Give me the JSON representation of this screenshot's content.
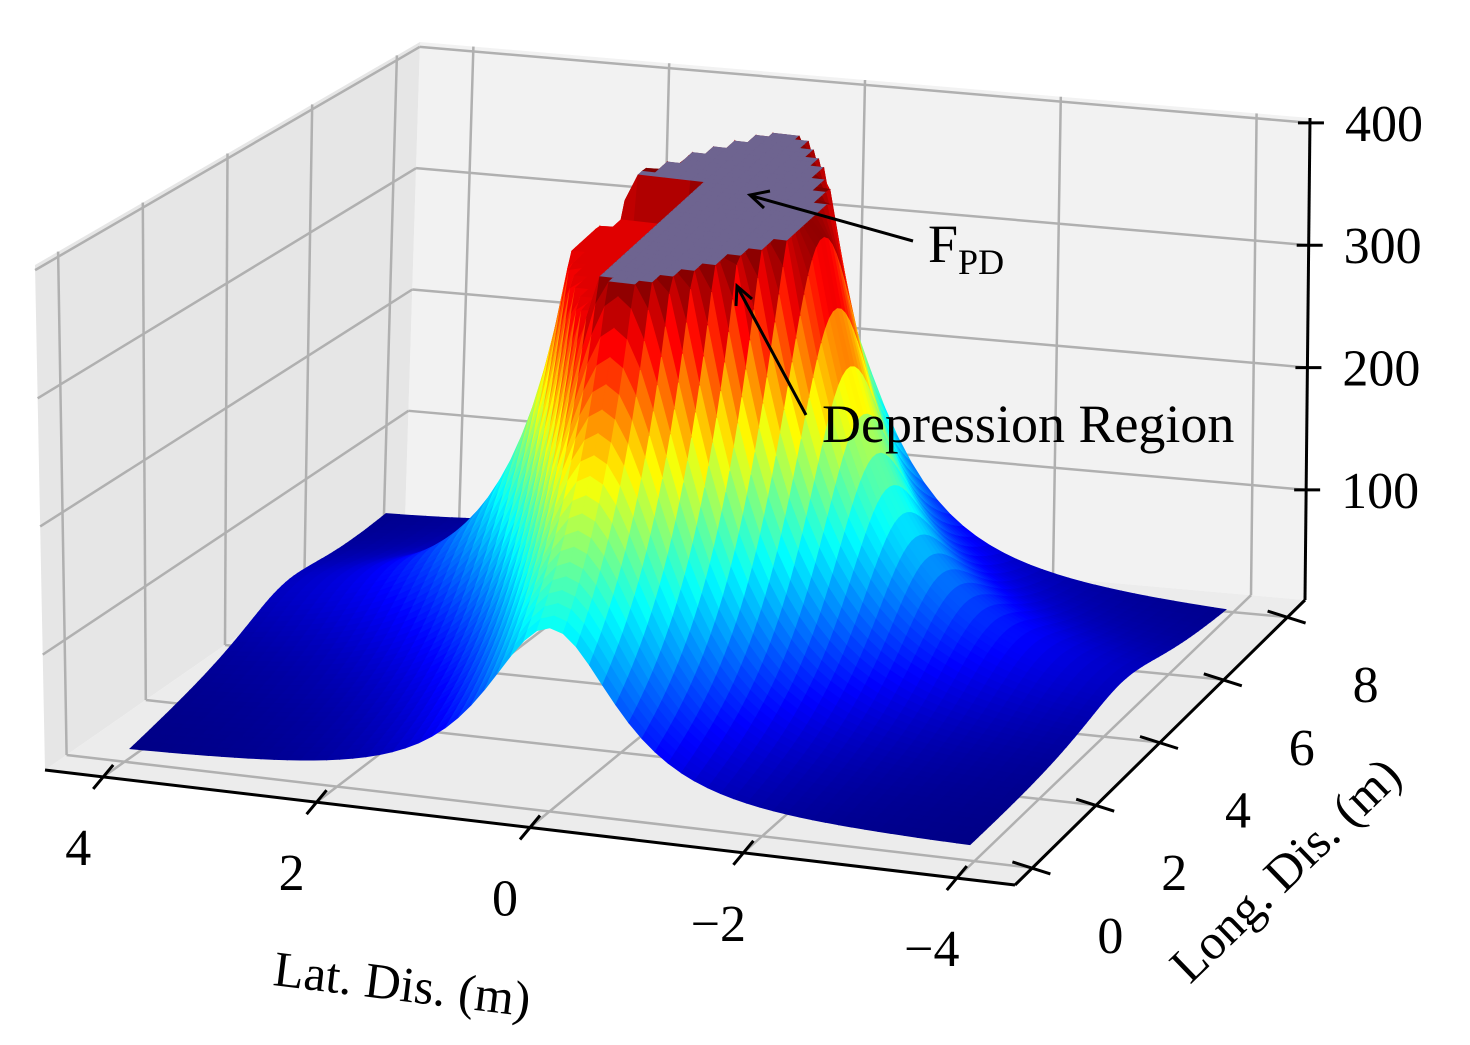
{
  "chart_data": {
    "type": "surface3d",
    "title": "",
    "xlabel": "Lat. Dis. (m)",
    "ylabel": "Long. Dis. (m)",
    "zlabel": "",
    "x_ticks": [
      "4",
      "2",
      "0",
      "−2",
      "−4"
    ],
    "x_tick_values": [
      4,
      2,
      0,
      -2,
      -4
    ],
    "y_ticks": [
      "0",
      "2",
      "4",
      "6",
      "8"
    ],
    "y_tick_values": [
      0,
      2,
      4,
      6,
      8
    ],
    "z_ticks": [
      "100",
      "200",
      "300",
      "400"
    ],
    "z_tick_values": [
      100,
      200,
      300,
      400
    ],
    "xlim": [
      -4,
      4
    ],
    "ylim": [
      0,
      8
    ],
    "zlim": [
      10,
      400
    ],
    "colormap": "jet",
    "peak_center": {
      "lat": 0,
      "long": 4.8
    },
    "plateau_cap_value": 380,
    "depression_cap_value": 345,
    "cap_color": "#6e6490",
    "grid": true,
    "annotations": [
      {
        "text_main": "F",
        "text_sub": "PD",
        "points_to": "flat top of peak"
      },
      {
        "text_main": "Depression Region",
        "points_to": "lowered plateau edge"
      }
    ]
  }
}
